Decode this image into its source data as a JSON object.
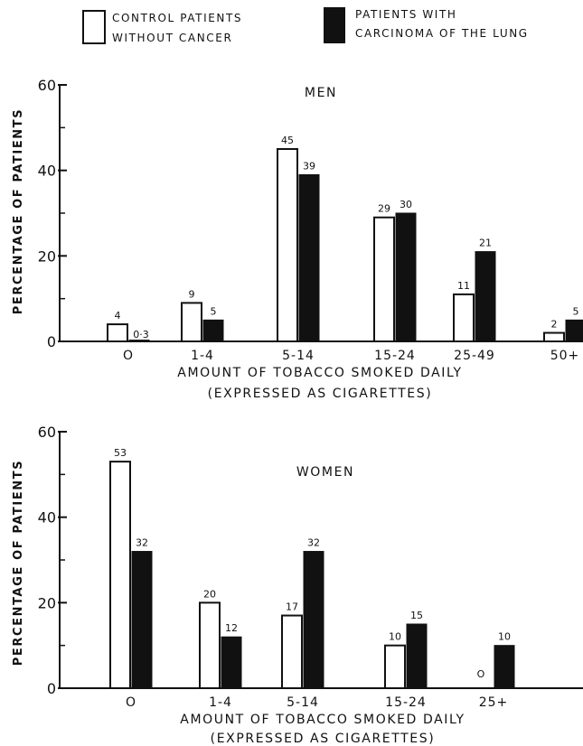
{
  "legend": {
    "control_line1": "CONTROL PATIENTS",
    "control_line2": "WITHOUT CANCER",
    "cancer_line1": "PATIENTS WITH",
    "cancer_line2": "CARCINOMA OF THE LUNG"
  },
  "colors": {
    "control_fill": "#ffffff",
    "cancer_fill": "#111111",
    "axis": "#111111"
  },
  "chart_data": [
    {
      "type": "bar",
      "title": "MEN",
      "xlabel": "AMOUNT OF TOBACCO SMOKED DAILY",
      "xlabel2": "(EXPRESSED AS CIGARETTES)",
      "ylabel": "PERCENTAGE OF PATIENTS",
      "ylim": [
        0,
        60
      ],
      "yticks": [
        "0",
        "20",
        "40",
        "60"
      ],
      "categories": [
        "O",
        "1-4",
        "5-14",
        "15-24",
        "25-49",
        "50+"
      ],
      "series": [
        {
          "name": "CONTROL PATIENTS WITHOUT CANCER",
          "values": [
            4,
            9,
            45,
            29,
            11,
            2
          ],
          "labels": [
            "4",
            "9",
            "45",
            "29",
            "11",
            "2"
          ]
        },
        {
          "name": "PATIENTS WITH CARCINOMA OF THE LUNG",
          "values": [
            0.3,
            5,
            39,
            30,
            21,
            5
          ],
          "labels": [
            "0·3",
            "5",
            "39",
            "30",
            "21",
            "5"
          ]
        }
      ]
    },
    {
      "type": "bar",
      "title": "WOMEN",
      "xlabel": "AMOUNT OF TOBACCO SMOKED DAILY",
      "xlabel2": "(EXPRESSED AS CIGARETTES)",
      "ylabel": "PERCENTAGE OF PATIENTS",
      "ylim": [
        0,
        60
      ],
      "yticks": [
        "0",
        "20",
        "40",
        "60"
      ],
      "categories": [
        "O",
        "1-4",
        "5-14",
        "15-24",
        "25+"
      ],
      "series": [
        {
          "name": "CONTROL PATIENTS WITHOUT CANCER",
          "values": [
            53,
            20,
            17,
            10,
            0
          ],
          "labels": [
            "53",
            "20",
            "17",
            "10",
            "O"
          ]
        },
        {
          "name": "PATIENTS WITH CARCINOMA OF THE LUNG",
          "values": [
            32,
            12,
            32,
            15,
            10
          ],
          "labels": [
            "32",
            "12",
            "32",
            "15",
            "10"
          ]
        }
      ]
    }
  ]
}
